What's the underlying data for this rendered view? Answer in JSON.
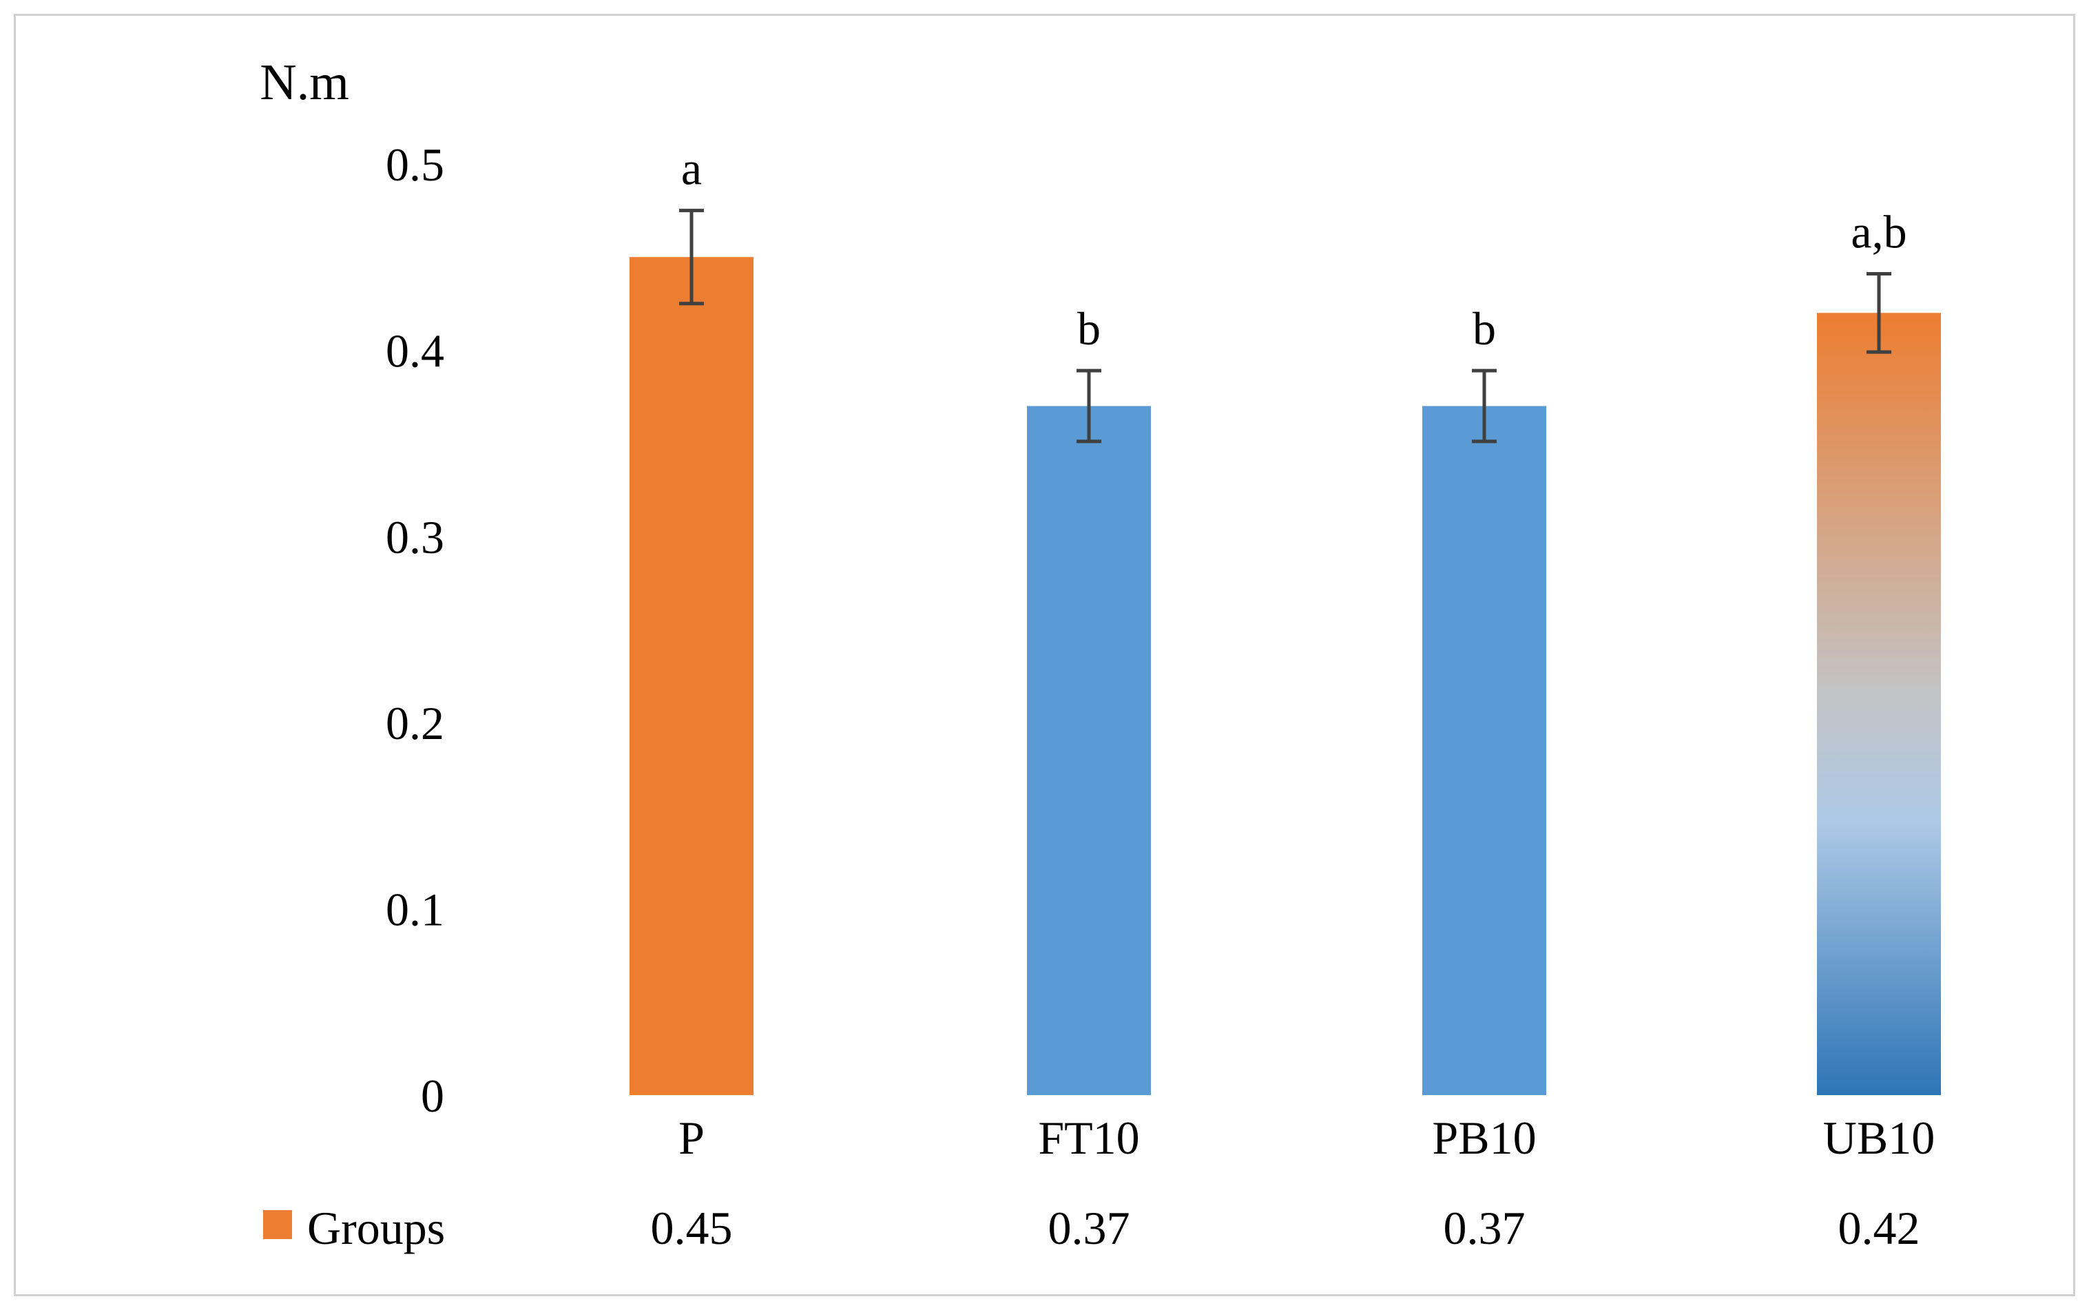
{
  "chart_data": {
    "type": "bar",
    "title": "",
    "xlabel": "",
    "ylabel": "N.m",
    "ylim": [
      0,
      0.5
    ],
    "yticks": [
      0,
      0.1,
      0.2,
      0.3,
      0.4,
      0.5
    ],
    "ytick_labels": [
      "0",
      "0.1",
      "0.2",
      "0.3",
      "0.4",
      "0.5"
    ],
    "grid": false,
    "categories": [
      "P",
      "FT10",
      "PB10",
      "UB10"
    ],
    "series": [
      {
        "name": "Groups",
        "values": [
          0.45,
          0.37,
          0.37,
          0.42
        ],
        "value_labels": [
          "0.45",
          "0.37",
          "0.37",
          "0.42"
        ],
        "error": [
          0.025,
          0.019,
          0.019,
          0.021
        ],
        "significance": [
          "a",
          "b",
          "b",
          "a,b"
        ],
        "fills": [
          "orange",
          "blue",
          "blue",
          "orange-blue-gradient"
        ]
      }
    ],
    "legend": {
      "position": "bottom-left (data table)",
      "label": "Groups"
    },
    "colors": {
      "orange": "#ED7D31",
      "blue": "#5B9BD5",
      "gradient_top": "#ED7D31",
      "gradient_mid_gray": "#C3C3C3",
      "gradient_light_blue": "#ADC9E6",
      "gradient_bottom": "#2E75B6",
      "error_bar": "#404040"
    }
  }
}
